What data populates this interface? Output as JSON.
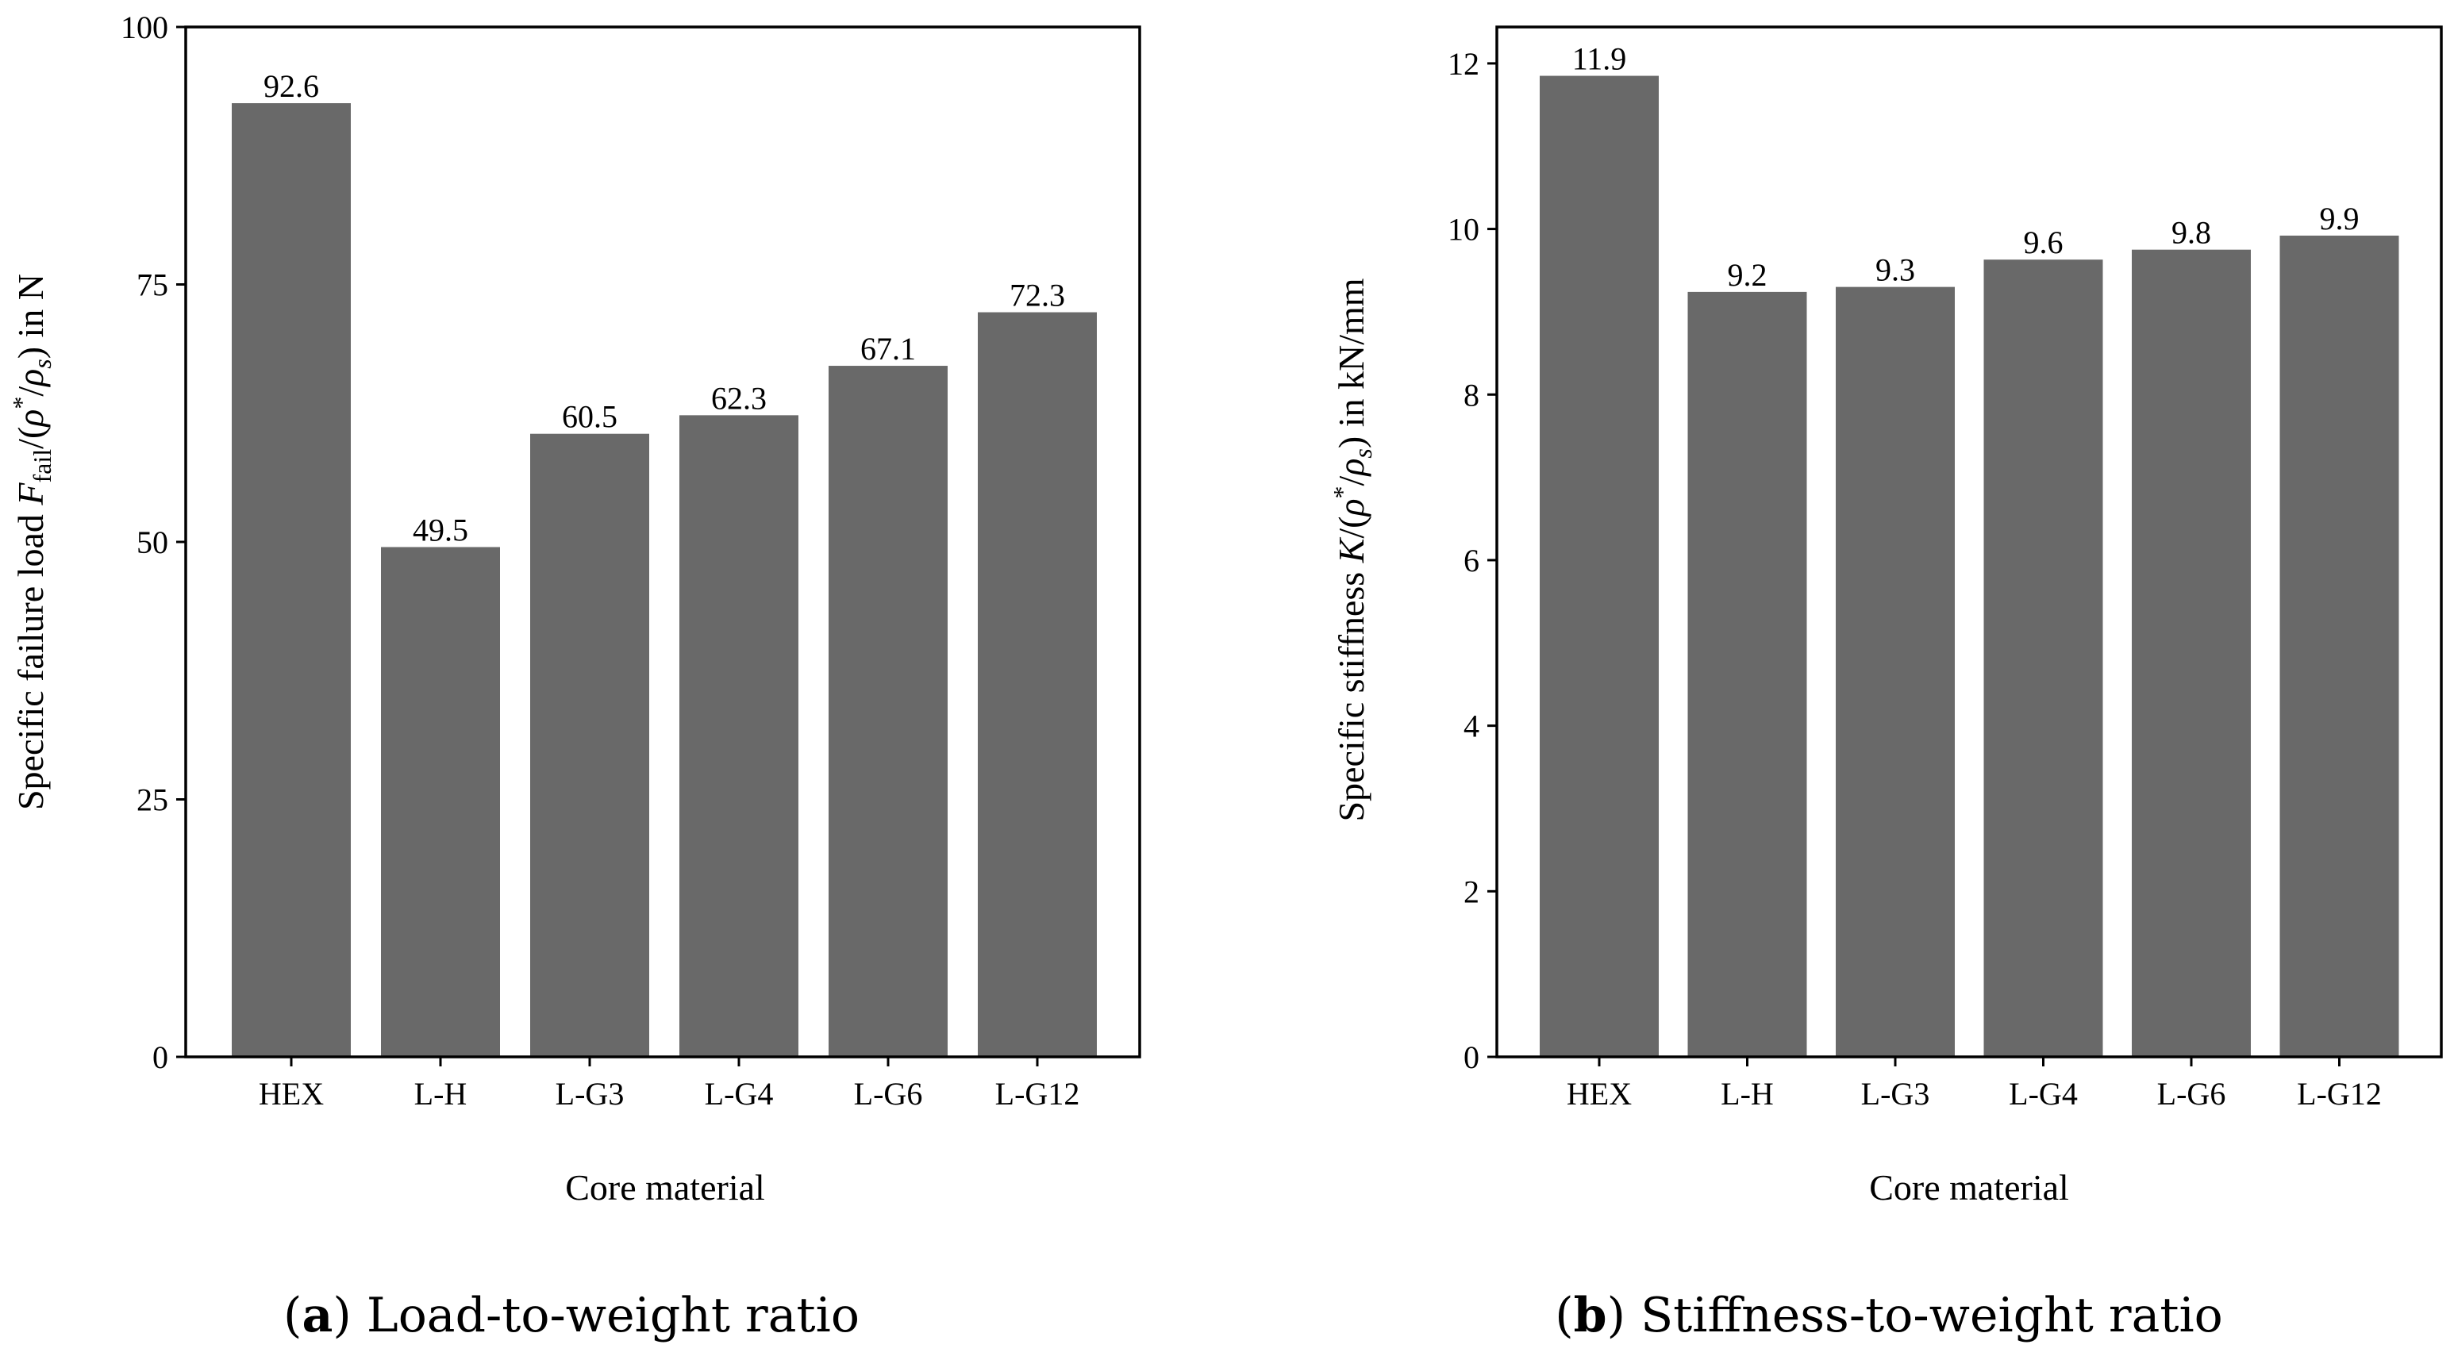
{
  "chart_data": [
    {
      "panel": "a",
      "type": "bar",
      "categories": [
        "HEX",
        "L-H",
        "L-G3",
        "L-G4",
        "L-G6",
        "L-G12"
      ],
      "values": [
        92.6,
        49.5,
        60.5,
        62.3,
        67.1,
        72.3
      ],
      "value_labels": [
        "92.6",
        "49.5",
        "60.5",
        "62.3",
        "67.1",
        "72.3"
      ],
      "ylim": [
        0,
        100
      ],
      "yticks": [
        0,
        25,
        50,
        75,
        100
      ],
      "ytick_labels": [
        "0",
        "25",
        "50",
        "75",
        "100"
      ],
      "xlabel": "Core material",
      "ylabel": "Specific failure load F_fail/(ρ*/ρ_s) in N",
      "ylabel_parts": {
        "pre": "Specific failure load ",
        "sym": "F",
        "sub1": "fail",
        "mid1": "/(",
        "rho": "ρ",
        "star": "*",
        "mid2": "/",
        "rho2": "ρ",
        "sub2": "s",
        "post": ") in N"
      },
      "caption_letter": "a",
      "caption_text": "Load-to-weight ratio",
      "bar_color": "#696969",
      "grid": false
    },
    {
      "panel": "b",
      "type": "bar",
      "categories": [
        "HEX",
        "L-H",
        "L-G3",
        "L-G4",
        "L-G6",
        "L-G12"
      ],
      "values": [
        11.85,
        9.24,
        9.3,
        9.63,
        9.75,
        9.92
      ],
      "value_labels": [
        "11.9",
        "9.2",
        "9.3",
        "9.6",
        "9.8",
        "9.9"
      ],
      "ylim": [
        0,
        12.44
      ],
      "yticks": [
        0,
        2,
        4,
        6,
        8,
        10,
        12
      ],
      "ytick_labels": [
        "0",
        "2",
        "4",
        "6",
        "8",
        "10",
        "12"
      ],
      "xlabel": "Core material",
      "ylabel": "Specific stiffness K/(ρ*/ρ_s) in kN/mm",
      "ylabel_parts": {
        "pre": "Specific stiffness ",
        "sym": "K",
        "sub1": "",
        "mid1": "/(",
        "rho": "ρ",
        "star": "*",
        "mid2": "/",
        "rho2": "ρ",
        "sub2": "s",
        "post": ") in kN/mm"
      },
      "caption_letter": "b",
      "caption_text": "Stiffness-to-weight ratio",
      "bar_color": "#696969",
      "grid": false
    }
  ]
}
